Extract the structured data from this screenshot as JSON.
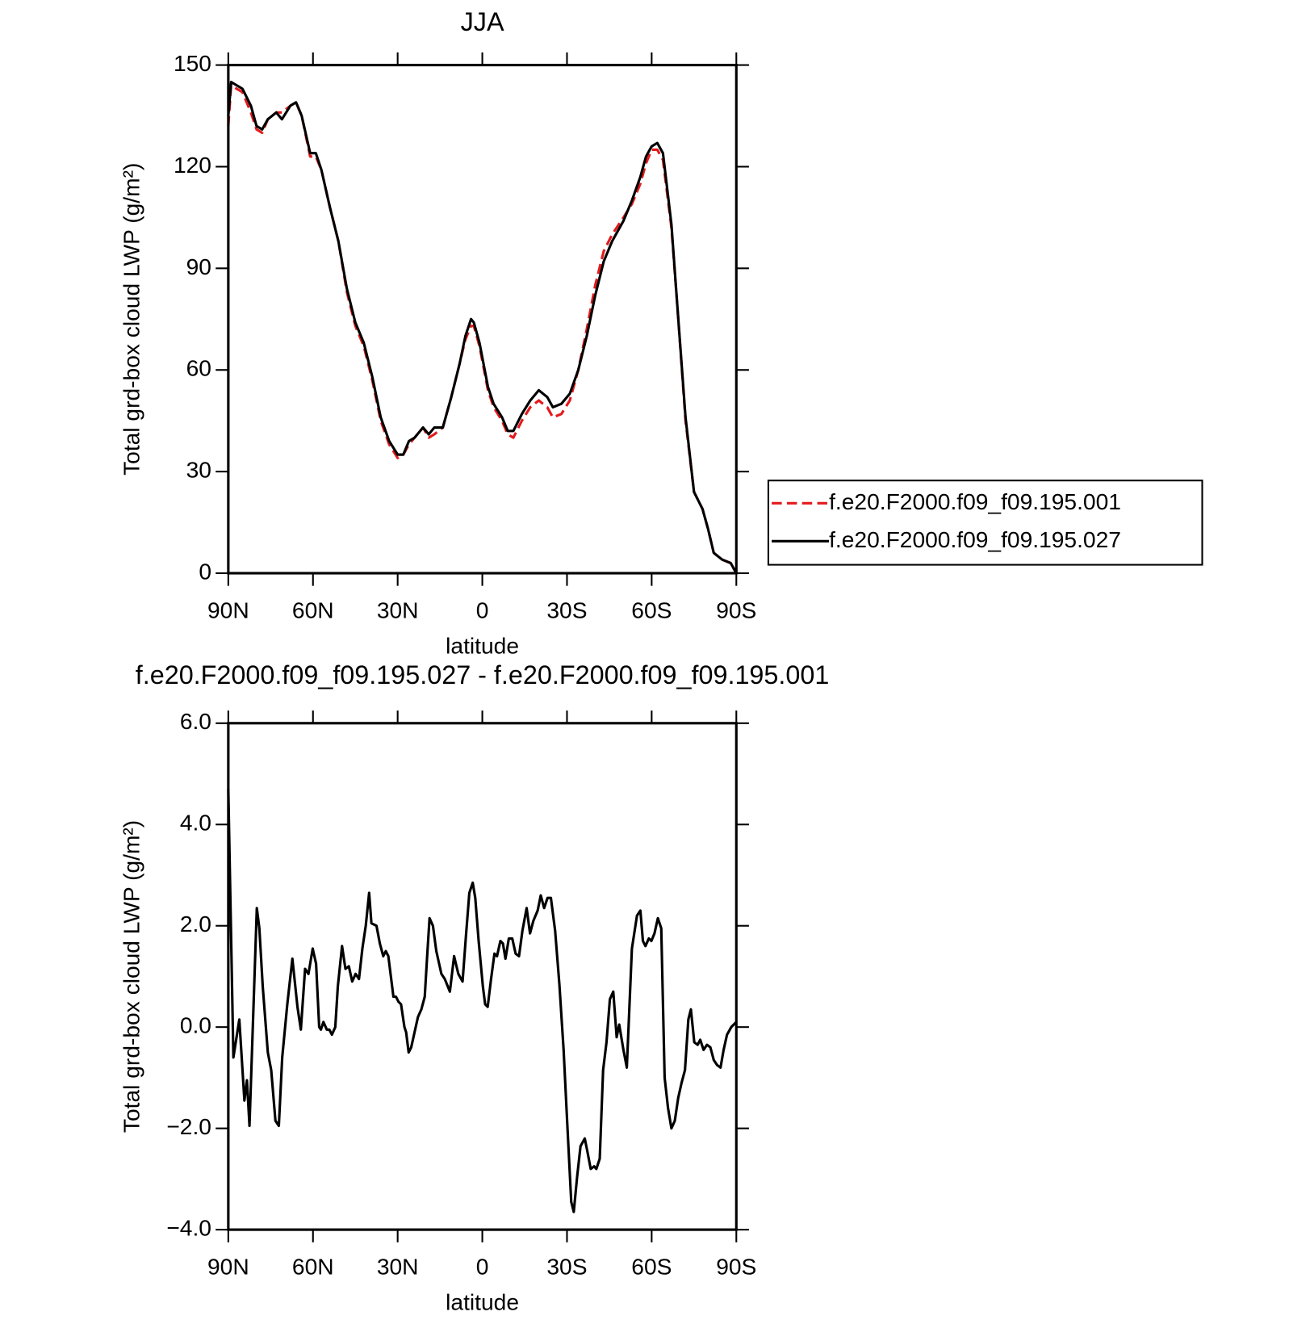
{
  "chart_data": [
    {
      "type": "line",
      "title": "JJA",
      "x_label": "latitude",
      "y_label": "Total grd-box cloud LWP (g/m²)",
      "x": [
        90,
        89,
        85,
        82,
        80,
        78,
        76,
        73,
        71,
        68,
        66,
        64,
        61,
        59,
        57,
        54,
        51,
        48,
        45,
        42,
        39,
        36,
        33,
        30,
        28,
        26,
        24,
        21,
        19,
        17,
        14,
        11,
        8,
        6,
        4,
        3,
        1,
        -2,
        -4,
        -7,
        -9,
        -11,
        -14,
        -17,
        -20,
        -23,
        -25,
        -28,
        -31,
        -34,
        -37,
        -40,
        -43,
        -46,
        -50,
        -53,
        -56,
        -58,
        -60,
        -62,
        -64,
        -67,
        -69,
        -72,
        -75,
        -78,
        -80,
        -82,
        -85,
        -88,
        -90
      ],
      "series": [
        {
          "name": "f.e20.F2000.f09_f09.195.001",
          "color": "#e41a1c",
          "dash": true,
          "values": [
            132,
            144,
            142,
            136,
            131,
            130,
            134,
            136,
            136,
            138,
            139,
            135,
            123,
            123,
            119,
            108,
            98,
            83,
            73,
            67,
            57,
            45,
            38,
            34,
            35,
            38,
            40,
            43,
            40,
            41,
            43,
            52,
            62,
            69,
            73,
            73,
            67,
            54,
            49,
            45,
            41,
            40,
            45,
            49,
            51,
            49,
            46,
            47,
            51,
            60,
            72,
            85,
            95,
            100,
            105,
            109,
            115,
            121,
            125,
            125,
            122,
            102,
            80,
            45,
            24,
            19,
            13,
            6,
            4,
            3,
            0
          ]
        },
        {
          "name": "f.e20.F2000.f09_f09.195.027",
          "color": "#000000",
          "dash": false,
          "values": [
            135,
            145,
            143,
            138,
            132,
            131,
            134,
            136,
            134,
            138,
            139,
            135,
            124,
            124,
            119,
            108,
            98,
            84,
            74,
            68,
            58,
            46,
            39,
            35,
            35,
            39,
            40,
            43,
            41,
            43,
            43,
            52,
            62,
            70,
            75,
            74,
            68,
            55,
            50,
            46,
            42,
            42,
            47,
            51,
            54,
            52,
            49,
            50,
            53,
            60,
            70,
            82,
            92,
            98,
            104,
            110,
            117,
            123,
            126,
            127,
            124,
            103,
            80,
            46,
            24,
            19,
            13,
            6,
            4,
            3,
            0
          ]
        }
      ],
      "xlim": [
        90,
        -90
      ],
      "xticks": [
        {
          "value": 90,
          "label": "90N"
        },
        {
          "value": 60,
          "label": "60N"
        },
        {
          "value": 30,
          "label": "30N"
        },
        0,
        {
          "value": -30,
          "label": "30S"
        },
        {
          "value": -60,
          "label": "60S"
        },
        {
          "value": -90,
          "label": "90S"
        }
      ],
      "ylim": [
        0,
        150
      ],
      "yticks": [
        0,
        30,
        60,
        90,
        120,
        150
      ],
      "legend": "right"
    },
    {
      "type": "line",
      "title": "f.e20.F2000.f09_f09.195.027 - f.e20.F2000.f09_f09.195.001",
      "x_label": "latitude",
      "y_label": "Total grd-box cloud LWP (g/m²)",
      "x": [
        90,
        88.2,
        86.1,
        84.3,
        83.4,
        82.5,
        79.9,
        79,
        77.8,
        76,
        74.8,
        73.3,
        72.1,
        70.9,
        69.1,
        67.3,
        65.5,
        64.3,
        62.8,
        61.6,
        60.1,
        58.9,
        57.8,
        57.2,
        56.3,
        55.1,
        54.2,
        53.3,
        52.1,
        51.2,
        49.7,
        48.5,
        47.3,
        46.1,
        44.9,
        43.7,
        42.5,
        41.3,
        40.1,
        39.3,
        37.5,
        36.3,
        35.1,
        34.2,
        33.3,
        32.4,
        31.5,
        30.6,
        29.7,
        28.8,
        27.6,
        27,
        26.1,
        25.2,
        24,
        22.8,
        21.6,
        20.4,
        19.6,
        18.7,
        17.5,
        16.3,
        14.5,
        13.3,
        11.5,
        10,
        8.5,
        7,
        5.8,
        4.6,
        3.4,
        2.5,
        1.3,
        -0.2,
        -1,
        -1.9,
        -3.1,
        -4.3,
        -5.2,
        -6.4,
        -7.3,
        -8.2,
        -9.4,
        -10.6,
        -11.8,
        -13,
        -14.2,
        -15.7,
        -16.9,
        -18.1,
        -19.6,
        -20.7,
        -21.9,
        -23.1,
        -24.3,
        -25.8,
        -27.3,
        -28.8,
        -30,
        -31.5,
        -32.4,
        -33.6,
        -34.8,
        -36.3,
        -37.2,
        -38.4,
        -39.6,
        -40.4,
        -41.6,
        -42.8,
        -44,
        -45.2,
        -46.4,
        -47.6,
        -48.5,
        -50,
        -51.2,
        -53,
        -54.8,
        -56,
        -56.9,
        -57.8,
        -59,
        -59.9,
        -61,
        -62.2,
        -63.4,
        -64.6,
        -65.8,
        -67,
        -68.2,
        -69.4,
        -70.6,
        -71.8,
        -73,
        -73.9,
        -75.1,
        -76.3,
        -77.2,
        -78.4,
        -79.6,
        -80.8,
        -82,
        -83.2,
        -84.4,
        -85.5,
        -86.7,
        -88.2,
        -90
      ],
      "series": [
        {
          "name": "f.e20.F2000.f09_f09.195.027 - f.e20.F2000.f09_f09.195.001",
          "color": "#000000",
          "dash": false,
          "values": [
            4.7,
            -0.6,
            0.15,
            -1.45,
            -1.05,
            -1.95,
            2.35,
            1.95,
            0.8,
            -0.5,
            -0.85,
            -1.85,
            -1.95,
            -0.6,
            0.45,
            1.35,
            0.4,
            -0.05,
            1.15,
            1.05,
            1.55,
            1.25,
            0,
            -0.05,
            0.1,
            -0.05,
            -0.05,
            -0.15,
            0,
            0.8,
            1.6,
            1.15,
            1.2,
            0.9,
            1.05,
            0.95,
            1.55,
            2,
            2.65,
            2.05,
            2,
            1.65,
            1.4,
            1.5,
            1.4,
            1,
            0.6,
            0.6,
            0.5,
            0.45,
            0,
            -0.1,
            -0.5,
            -0.4,
            -0.1,
            0.2,
            0.35,
            0.6,
            1.35,
            2.15,
            2,
            1.5,
            1.05,
            0.95,
            0.7,
            1.4,
            1.05,
            0.9,
            1.8,
            2.65,
            2.85,
            2.55,
            1.7,
            0.8,
            0.45,
            0.4,
            0.95,
            1.45,
            1.4,
            1.7,
            1.65,
            1.35,
            1.75,
            1.75,
            1.45,
            1.4,
            1.9,
            2.35,
            1.85,
            2.1,
            2.3,
            2.6,
            2.35,
            2.55,
            2.55,
            1.9,
            0.85,
            -0.45,
            -1.8,
            -3.45,
            -3.65,
            -2.95,
            -2.35,
            -2.2,
            -2.45,
            -2.8,
            -2.75,
            -2.8,
            -2.6,
            -0.85,
            -0.3,
            0.55,
            0.7,
            -0.2,
            0.05,
            -0.45,
            -0.8,
            1.55,
            2.2,
            2.3,
            1.7,
            1.6,
            1.75,
            1.7,
            1.85,
            2.15,
            1.95,
            -1,
            -1.6,
            -2,
            -1.85,
            -1.4,
            -1.1,
            -0.85,
            0.15,
            0.35,
            -0.3,
            -0.35,
            -0.25,
            -0.45,
            -0.35,
            -0.4,
            -0.65,
            -0.75,
            -0.8,
            -0.45,
            -0.15,
            0,
            0.1
          ]
        }
      ],
      "xlim": [
        90,
        -90
      ],
      "xticks": [
        {
          "value": 90,
          "label": "90N"
        },
        {
          "value": 60,
          "label": "60N"
        },
        {
          "value": 30,
          "label": "30N"
        },
        0,
        {
          "value": -30,
          "label": "30S"
        },
        {
          "value": -60,
          "label": "60S"
        },
        {
          "value": -90,
          "label": "90S"
        }
      ],
      "ylim": [
        -4,
        6
      ],
      "yticks": [
        {
          "value": -4,
          "label": "−4.0"
        },
        {
          "value": -2,
          "label": "−2.0"
        },
        {
          "value": 0,
          "label": "0.0"
        },
        {
          "value": 2,
          "label": "2.0"
        },
        {
          "value": 4,
          "label": "4.0"
        },
        {
          "value": 6,
          "label": "6.0"
        }
      ]
    }
  ]
}
